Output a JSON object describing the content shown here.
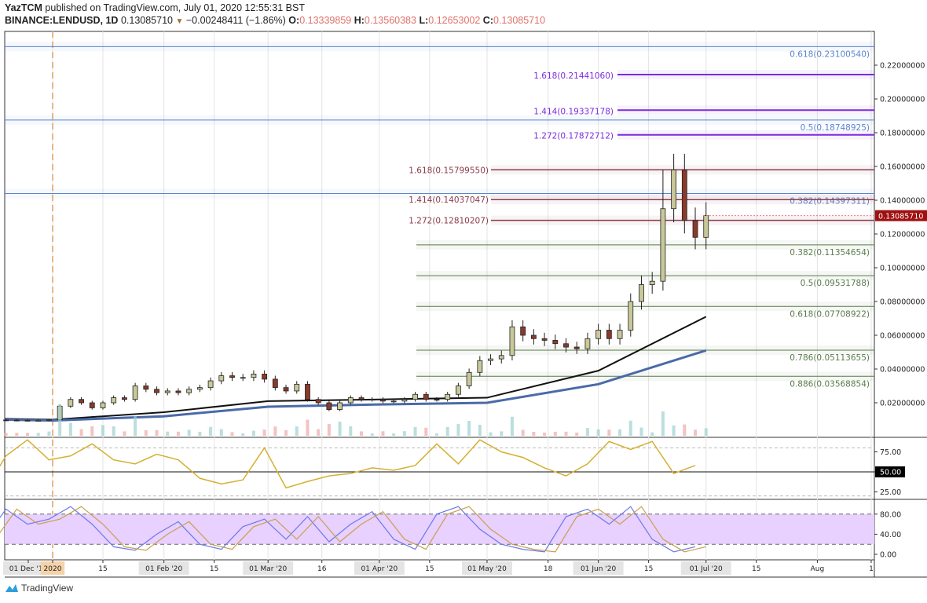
{
  "header": {
    "author": "YazTCM",
    "published": "published on TradingView.com, July 01, 2020 12:55:31 BST",
    "symbol": "BINANCE:LENDUSD, 1D",
    "last": "0.13085710",
    "change": "−0.00248411 (−1.86%)",
    "o_label": "O:",
    "o": "0.13339859",
    "h_label": "H:",
    "h": "0.13560383",
    "l_label": "L:",
    "l": "0.12653002",
    "c_label": "C:",
    "c": "0.13085710"
  },
  "footer": {
    "brand": "TradingView",
    "icon": "tradingview-logo-icon"
  },
  "colors": {
    "up": "#c8c89a",
    "down": "#8b3a2a",
    "ma_black": "#111111",
    "ma_blue": "#4a6aa8",
    "rsi": "#d4b030",
    "stoch_k": "#6a7ae8",
    "stoch_d": "#c8a050",
    "stoch_band": "#e8d0ff",
    "price_label": "#a01010",
    "fib_ext_purple": "#7b2be0",
    "fib_ext_maroon": "#8b3a4a",
    "fib_retr_green": "#5a7a4a",
    "fib_blue": "#5a82d0"
  },
  "chart_data": {
    "type": "candlestick",
    "price_axis": {
      "ylim": [
        0.0,
        0.235
      ],
      "ticks": [
        "0.22000000",
        "0.20000000",
        "0.18000000",
        "0.16000000",
        "0.14000000",
        "0.12000000",
        "0.10000000",
        "0.08000000",
        "0.06000000",
        "0.04000000",
        "0.02000000"
      ],
      "tick_values": [
        0.22,
        0.2,
        0.18,
        0.16,
        0.14,
        0.12,
        0.1,
        0.08,
        0.06,
        0.04,
        0.02
      ]
    },
    "current_price_label": "0.13085710",
    "time_axis": {
      "labels": [
        "01 Dec '19",
        "2020",
        "15",
        "01 Feb '20",
        "15",
        "01 Mar '20",
        "16",
        "01 Apr '20",
        "15",
        "01 May '20",
        "18",
        "01 Jun '20",
        "15",
        "01 Jul '20",
        "15",
        "Aug",
        "1"
      ],
      "dates": [
        "2019-12-01",
        "2020-01-01",
        "2020-01-15",
        "2020-02-01",
        "2020-02-15",
        "2020-03-01",
        "2020-03-16",
        "2020-04-01",
        "2020-04-15",
        "2020-05-01",
        "2020-05-18",
        "2020-06-01",
        "2020-06-15",
        "2020-07-01",
        "2020-07-15",
        "2020-08-01",
        "2020-08-16"
      ],
      "hidden_label": "Jan '20"
    },
    "closes_every_3_days_from": "2019-12-01",
    "closes": [
      0.0105,
      0.0103,
      0.0102,
      0.01,
      0.0099,
      0.0098,
      0.0097,
      0.0096,
      0.0095,
      0.0096,
      0.01,
      0.018,
      0.022,
      0.02,
      0.017,
      0.02,
      0.023,
      0.022,
      0.03,
      0.028,
      0.026,
      0.027,
      0.026,
      0.028,
      0.029,
      0.033,
      0.036,
      0.035,
      0.035,
      0.037,
      0.034,
      0.029,
      0.027,
      0.031,
      0.022,
      0.02,
      0.016,
      0.02,
      0.023,
      0.022,
      0.022,
      0.021,
      0.021,
      0.022,
      0.025,
      0.022,
      0.022,
      0.025,
      0.03,
      0.038,
      0.045,
      0.046,
      0.048,
      0.065,
      0.06,
      0.058,
      0.057,
      0.055,
      0.053,
      0.052,
      0.058,
      0.063,
      0.058,
      0.063,
      0.08,
      0.09,
      0.092,
      0.135,
      0.158,
      0.128,
      0.118,
      0.1309
    ],
    "moving_averages": [
      {
        "dates": [
          "2019-12-01",
          "2020-01-01",
          "2020-02-01",
          "2020-03-01",
          "2020-04-01",
          "2020-05-01",
          "2020-06-01",
          "2020-07-01"
        ],
        "values": [
          0.0105,
          0.01,
          0.0144,
          0.021,
          0.022,
          0.023,
          0.039,
          0.071
        ],
        "color": "#111111"
      },
      {
        "dates": [
          "2019-12-01",
          "2020-01-01",
          "2020-02-01",
          "2020-03-01",
          "2020-04-01",
          "2020-05-01",
          "2020-06-01",
          "2020-07-01"
        ],
        "values": [
          0.01,
          0.0095,
          0.012,
          0.0177,
          0.019,
          0.02,
          0.031,
          0.051
        ],
        "color": "#4a6aa8"
      }
    ],
    "fib_retracement": [
      {
        "label": "0.382(0.11354654)",
        "value": 0.11354654
      },
      {
        "label": "0.5(0.09531788)",
        "value": 0.09531788
      },
      {
        "label": "0.618(0.07708922)",
        "value": 0.07708922
      },
      {
        "label": "0.786(0.05113655)",
        "value": 0.05113655
      },
      {
        "label": "0.886(0.03568854)",
        "value": 0.03568854
      }
    ],
    "fib_extension_maroon": [
      {
        "label": "1.618(0.15799550)",
        "value": 0.1579955
      },
      {
        "label": "1.414(0.14037047)",
        "value": 0.14037047
      },
      {
        "label": "1.272(0.12810207)",
        "value": 0.12810207
      }
    ],
    "fib_extension_purple": [
      {
        "label": "1.618(0.21441060)",
        "value": 0.2144106
      },
      {
        "label": "1.414(0.19337178)",
        "value": 0.19337178
      },
      {
        "label": "1.272(0.17872712)",
        "value": 0.17872712
      }
    ],
    "fib_long_blue": [
      {
        "label": "0.618(0.23100540)",
        "value": 0.2310054
      },
      {
        "label": "0.5(0.18748925)",
        "value": 0.18748925
      },
      {
        "label": "0.382(0.14397311)",
        "value": 0.14397311
      }
    ],
    "rsi": {
      "ticks": [
        "75.00",
        "50.00",
        "25.00"
      ],
      "highlight_label": "50.00",
      "bands": [
        80,
        20
      ],
      "every_6_days": [
        30,
        28,
        25,
        70,
        90,
        65,
        70,
        85,
        65,
        60,
        72,
        65,
        42,
        35,
        40,
        80,
        30,
        38,
        45,
        48,
        55,
        52,
        58,
        85,
        60,
        90,
        75,
        68,
        55,
        45,
        60,
        88,
        78,
        88,
        48,
        58
      ]
    },
    "stoch_rsi": {
      "ticks": [
        "80.00",
        "40.00",
        "0.00"
      ],
      "bands": [
        80,
        20
      ],
      "k_every_6_days": [
        25,
        20,
        30,
        90,
        60,
        70,
        95,
        60,
        15,
        8,
        40,
        65,
        20,
        10,
        55,
        70,
        30,
        75,
        25,
        60,
        85,
        30,
        10,
        80,
        95,
        50,
        20,
        10,
        5,
        75,
        90,
        60,
        95,
        30,
        5,
        15
      ]
    }
  }
}
